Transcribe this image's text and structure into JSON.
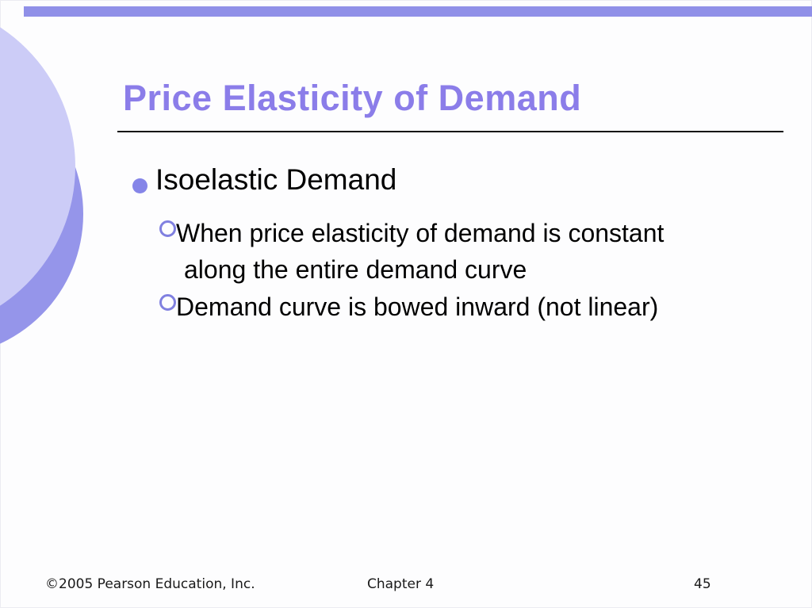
{
  "slide": {
    "title": "Price Elasticity of Demand",
    "content": {
      "bullet": {
        "label": "Isoelastic Demand"
      },
      "sub_bullets": [
        {
          "lines": [
            "When price elasticity of demand is constant",
            "along the entire demand curve"
          ]
        },
        {
          "lines": [
            "Demand curve is bowed inward (not linear)"
          ]
        }
      ]
    },
    "footer": {
      "copyright": "©2005 Pearson Education, Inc.",
      "chapter": "Chapter 4",
      "page_number": "45"
    },
    "colors": {
      "title_text": "#8b7de9",
      "accent_bar": "#9090e8",
      "bullet_fill": "#8585e8",
      "ring_stroke": "#8080e0",
      "circle_light": "#ccccf7",
      "circle_dark": "#9595ea",
      "body_text": "#000000",
      "underline": "#111111"
    }
  }
}
